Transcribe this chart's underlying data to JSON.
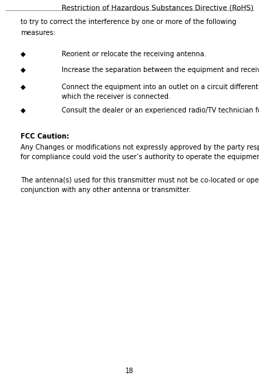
{
  "title": "Restriction of Hazardous Substances Directive (RoHS)",
  "page_number": "18",
  "background_color": "#ffffff",
  "text_color": "#000000",
  "title_fontsize": 7.5,
  "body_fontsize": 7.0,
  "bold_fontsize": 7.0,
  "intro_line1": "to try to correct the interference by one or more of the following",
  "intro_line2": "measures:",
  "bullet_char": "◆",
  "bullet1": "Reorient or relocate the receiving antenna.",
  "bullet2": "Increase the separation between the equipment and receiver.",
  "bullet3a": "Connect the equipment into an outlet on a circuit different from that to",
  "bullet3b": "which the receiver is connected.",
  "bullet4": "Consult the dealer or an experienced radio/TV technician for help.",
  "fcc_label": "FCC Caution:",
  "fcc_line1": "Any Changes or modifications not expressly approved by the party responsible",
  "fcc_line2": "for compliance could void the user’s authority to operate the equipment.",
  "antenna_line1": "The antenna(s) used for this transmitter must not be co-located or operating in",
  "antenna_line2": "conjunction with any other antenna or transmitter."
}
